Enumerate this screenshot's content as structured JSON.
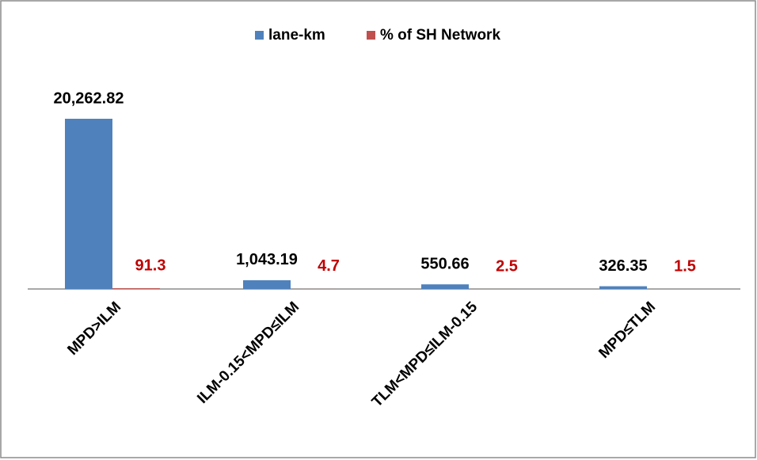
{
  "chart_data": {
    "type": "bar",
    "categories": [
      "MPD>ILM",
      "ILM-0.15<MPD≤ILM",
      "TLM<MPD≤ILM-0.15",
      "MPD≤TLM"
    ],
    "series": [
      {
        "name": "lane-km",
        "color": "#4f81bd",
        "values": [
          20262.82,
          1043.19,
          550.66,
          326.35
        ],
        "value_labels": [
          "20,262.82",
          "1,043.19",
          "550.66",
          "326.35"
        ]
      },
      {
        "name": "% of SH Network",
        "color": "#c0504d",
        "values": [
          91.3,
          4.7,
          2.5,
          1.5
        ]
      }
    ],
    "legend": "top"
  }
}
